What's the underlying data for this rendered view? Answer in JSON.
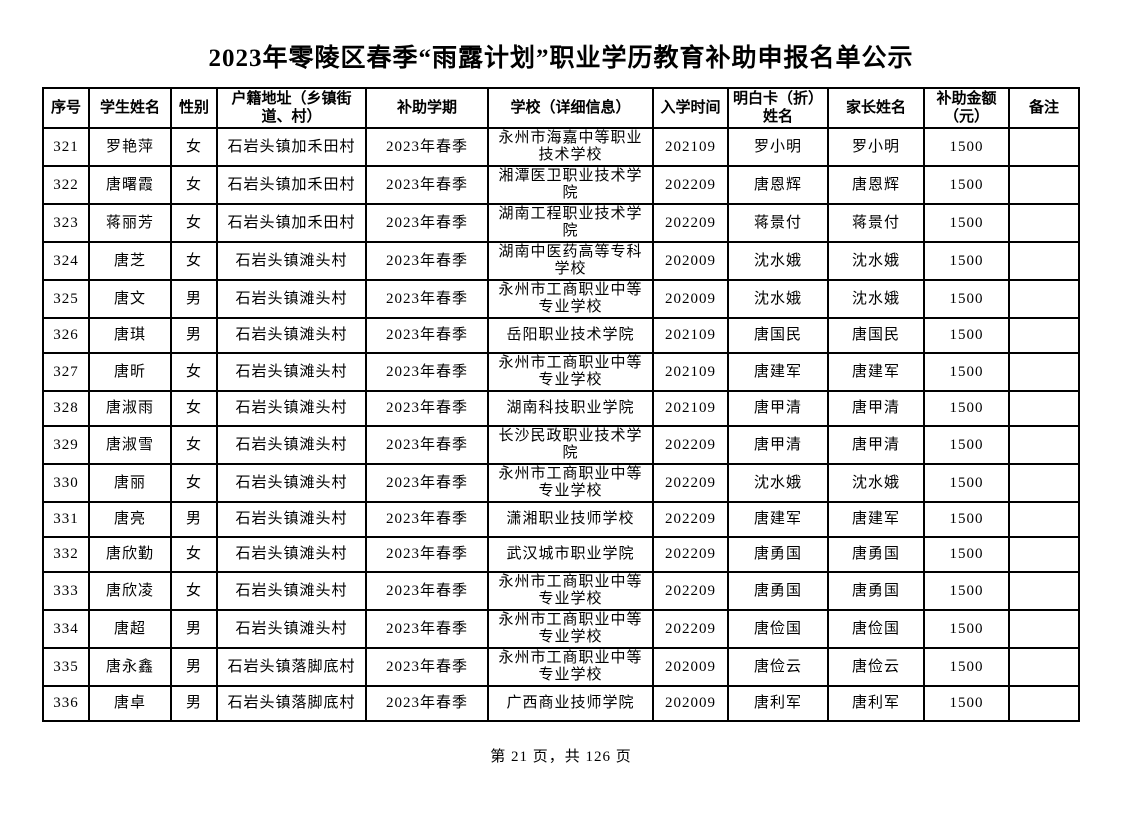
{
  "title": "2023年零陵区春季“雨露计划”职业学历教育补助申报名单公示",
  "table": {
    "headers": [
      "序号",
      "学生姓名",
      "性别",
      "户籍地址（乡镇街道、村）",
      "补助学期",
      "学校（详细信息）",
      "入学时间",
      "明白卡（折）姓名",
      "家长姓名",
      "补助金额（元）",
      "备注"
    ],
    "rows": [
      [
        "321",
        "罗艳萍",
        "女",
        "石岩头镇加禾田村",
        "2023年春季",
        "永州市海嘉中等职业技术学校",
        "202109",
        "罗小明",
        "罗小明",
        "1500",
        ""
      ],
      [
        "322",
        "唐曙霞",
        "女",
        "石岩头镇加禾田村",
        "2023年春季",
        "湘潭医卫职业技术学院",
        "202209",
        "唐恩辉",
        "唐恩辉",
        "1500",
        ""
      ],
      [
        "323",
        "蒋丽芳",
        "女",
        "石岩头镇加禾田村",
        "2023年春季",
        "湖南工程职业技术学院",
        "202209",
        "蒋景付",
        "蒋景付",
        "1500",
        ""
      ],
      [
        "324",
        "唐芝",
        "女",
        "石岩头镇滩头村",
        "2023年春季",
        "湖南中医药高等专科学校",
        "202009",
        "沈水娥",
        "沈水娥",
        "1500",
        ""
      ],
      [
        "325",
        "唐文",
        "男",
        "石岩头镇滩头村",
        "2023年春季",
        "永州市工商职业中等专业学校",
        "202009",
        "沈水娥",
        "沈水娥",
        "1500",
        ""
      ],
      [
        "326",
        "唐琪",
        "男",
        "石岩头镇滩头村",
        "2023年春季",
        "岳阳职业技术学院",
        "202109",
        "唐国民",
        "唐国民",
        "1500",
        ""
      ],
      [
        "327",
        "唐昕",
        "女",
        "石岩头镇滩头村",
        "2023年春季",
        "永州市工商职业中等专业学校",
        "202109",
        "唐建军",
        "唐建军",
        "1500",
        ""
      ],
      [
        "328",
        "唐淑雨",
        "女",
        "石岩头镇滩头村",
        "2023年春季",
        "湖南科技职业学院",
        "202109",
        "唐甲清",
        "唐甲清",
        "1500",
        ""
      ],
      [
        "329",
        "唐淑雪",
        "女",
        "石岩头镇滩头村",
        "2023年春季",
        "长沙民政职业技术学院",
        "202209",
        "唐甲清",
        "唐甲清",
        "1500",
        ""
      ],
      [
        "330",
        "唐丽",
        "女",
        "石岩头镇滩头村",
        "2023年春季",
        "永州市工商职业中等专业学校",
        "202209",
        "沈水娥",
        "沈水娥",
        "1500",
        ""
      ],
      [
        "331",
        "唐亮",
        "男",
        "石岩头镇滩头村",
        "2023年春季",
        "潇湘职业技师学校",
        "202209",
        "唐建军",
        "唐建军",
        "1500",
        ""
      ],
      [
        "332",
        "唐欣勤",
        "女",
        "石岩头镇滩头村",
        "2023年春季",
        "武汉城市职业学院",
        "202209",
        "唐勇国",
        "唐勇国",
        "1500",
        ""
      ],
      [
        "333",
        "唐欣凌",
        "女",
        "石岩头镇滩头村",
        "2023年春季",
        "永州市工商职业中等专业学校",
        "202209",
        "唐勇国",
        "唐勇国",
        "1500",
        ""
      ],
      [
        "334",
        "唐超",
        "男",
        "石岩头镇滩头村",
        "2023年春季",
        "永州市工商职业中等专业学校",
        "202209",
        "唐俭国",
        "唐俭国",
        "1500",
        ""
      ],
      [
        "335",
        "唐永鑫",
        "男",
        "石岩头镇落脚底村",
        "2023年春季",
        "永州市工商职业中等专业学校",
        "202009",
        "唐俭云",
        "唐俭云",
        "1500",
        ""
      ],
      [
        "336",
        "唐卓",
        "男",
        "石岩头镇落脚底村",
        "2023年春季",
        "广西商业技师学院",
        "202009",
        "唐利军",
        "唐利军",
        "1500",
        ""
      ]
    ]
  },
  "footer": {
    "page_info": "第 21 页，共 126 页"
  }
}
